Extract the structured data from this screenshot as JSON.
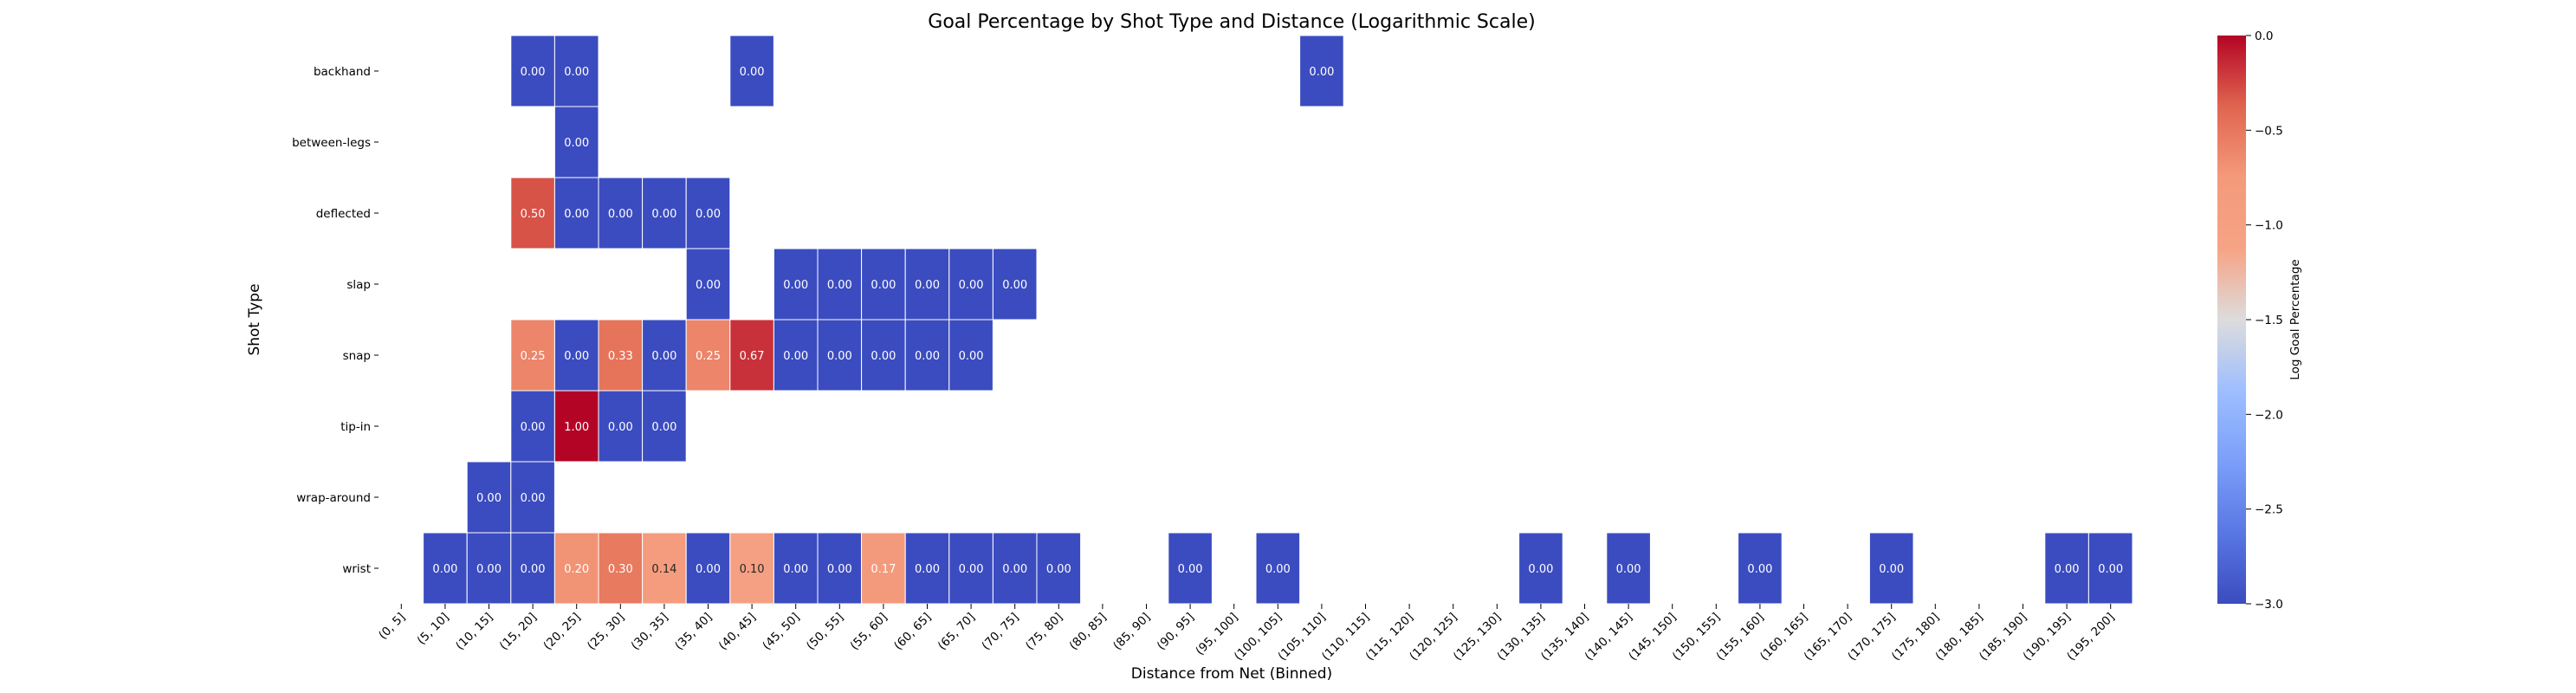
{
  "chart_data": {
    "type": "heatmap",
    "title": "Goal Percentage by Shot Type and Distance (Logarithmic Scale)",
    "xlabel": "Distance from Net (Binned)",
    "ylabel": "Shot Type",
    "x_categories": [
      "(0, 5]",
      "(5, 10]",
      "(10, 15]",
      "(15, 20]",
      "(20, 25]",
      "(25, 30]",
      "(30, 35]",
      "(35, 40]",
      "(40, 45]",
      "(45, 50]",
      "(50, 55]",
      "(55, 60]",
      "(60, 65]",
      "(65, 70]",
      "(70, 75]",
      "(75, 80]",
      "(80, 85]",
      "(85, 90]",
      "(90, 95]",
      "(95, 100]",
      "(100, 105]",
      "(105, 110]",
      "(110, 115]",
      "(115, 120]",
      "(120, 125]",
      "(125, 130]",
      "(130, 135]",
      "(135, 140]",
      "(140, 145]",
      "(145, 150]",
      "(150, 155]",
      "(155, 160]",
      "(160, 165]",
      "(165, 170]",
      "(170, 175]",
      "(175, 180]",
      "(180, 185]",
      "(185, 190]",
      "(190, 195]",
      "(195, 200]"
    ],
    "y_categories": [
      "backhand",
      "between-legs",
      "deflected",
      "slap",
      "snap",
      "tip-in",
      "wrap-around",
      "wrist"
    ],
    "cells": [
      {
        "row": 0,
        "col": 3,
        "value": 0.0,
        "label": "0.00"
      },
      {
        "row": 0,
        "col": 4,
        "value": 0.0,
        "label": "0.00"
      },
      {
        "row": 0,
        "col": 8,
        "value": 0.0,
        "label": "0.00"
      },
      {
        "row": 0,
        "col": 21,
        "value": 0.0,
        "label": "0.00"
      },
      {
        "row": 1,
        "col": 4,
        "value": 0.0,
        "label": "0.00"
      },
      {
        "row": 2,
        "col": 3,
        "value": 0.5,
        "label": "0.50"
      },
      {
        "row": 2,
        "col": 4,
        "value": 0.0,
        "label": "0.00"
      },
      {
        "row": 2,
        "col": 5,
        "value": 0.0,
        "label": "0.00"
      },
      {
        "row": 2,
        "col": 6,
        "value": 0.0,
        "label": "0.00"
      },
      {
        "row": 2,
        "col": 7,
        "value": 0.0,
        "label": "0.00"
      },
      {
        "row": 3,
        "col": 7,
        "value": 0.0,
        "label": "0.00"
      },
      {
        "row": 3,
        "col": 9,
        "value": 0.0,
        "label": "0.00"
      },
      {
        "row": 3,
        "col": 10,
        "value": 0.0,
        "label": "0.00"
      },
      {
        "row": 3,
        "col": 11,
        "value": 0.0,
        "label": "0.00"
      },
      {
        "row": 3,
        "col": 12,
        "value": 0.0,
        "label": "0.00"
      },
      {
        "row": 3,
        "col": 13,
        "value": 0.0,
        "label": "0.00"
      },
      {
        "row": 3,
        "col": 14,
        "value": 0.0,
        "label": "0.00"
      },
      {
        "row": 4,
        "col": 3,
        "value": 0.25,
        "label": "0.25"
      },
      {
        "row": 4,
        "col": 4,
        "value": 0.0,
        "label": "0.00"
      },
      {
        "row": 4,
        "col": 5,
        "value": 0.33,
        "label": "0.33"
      },
      {
        "row": 4,
        "col": 6,
        "value": 0.0,
        "label": "0.00"
      },
      {
        "row": 4,
        "col": 7,
        "value": 0.25,
        "label": "0.25"
      },
      {
        "row": 4,
        "col": 8,
        "value": 0.67,
        "label": "0.67"
      },
      {
        "row": 4,
        "col": 9,
        "value": 0.0,
        "label": "0.00"
      },
      {
        "row": 4,
        "col": 10,
        "value": 0.0,
        "label": "0.00"
      },
      {
        "row": 4,
        "col": 11,
        "value": 0.0,
        "label": "0.00"
      },
      {
        "row": 4,
        "col": 12,
        "value": 0.0,
        "label": "0.00"
      },
      {
        "row": 4,
        "col": 13,
        "value": 0.0,
        "label": "0.00"
      },
      {
        "row": 5,
        "col": 3,
        "value": 0.0,
        "label": "0.00"
      },
      {
        "row": 5,
        "col": 4,
        "value": 1.0,
        "label": "1.00"
      },
      {
        "row": 5,
        "col": 5,
        "value": 0.0,
        "label": "0.00"
      },
      {
        "row": 5,
        "col": 6,
        "value": 0.0,
        "label": "0.00"
      },
      {
        "row": 6,
        "col": 2,
        "value": 0.0,
        "label": "0.00"
      },
      {
        "row": 6,
        "col": 3,
        "value": 0.0,
        "label": "0.00"
      },
      {
        "row": 7,
        "col": 1,
        "value": 0.0,
        "label": "0.00"
      },
      {
        "row": 7,
        "col": 2,
        "value": 0.0,
        "label": "0.00"
      },
      {
        "row": 7,
        "col": 3,
        "value": 0.0,
        "label": "0.00"
      },
      {
        "row": 7,
        "col": 4,
        "value": 0.2,
        "label": "0.20"
      },
      {
        "row": 7,
        "col": 5,
        "value": 0.3,
        "label": "0.30"
      },
      {
        "row": 7,
        "col": 6,
        "value": 0.14,
        "label": "0.14"
      },
      {
        "row": 7,
        "col": 7,
        "value": 0.0,
        "label": "0.00"
      },
      {
        "row": 7,
        "col": 8,
        "value": 0.1,
        "label": "0.10"
      },
      {
        "row": 7,
        "col": 9,
        "value": 0.0,
        "label": "0.00"
      },
      {
        "row": 7,
        "col": 10,
        "value": 0.0,
        "label": "0.00"
      },
      {
        "row": 7,
        "col": 11,
        "value": 0.17,
        "label": "0.17"
      },
      {
        "row": 7,
        "col": 12,
        "value": 0.0,
        "label": "0.00"
      },
      {
        "row": 7,
        "col": 13,
        "value": 0.0,
        "label": "0.00"
      },
      {
        "row": 7,
        "col": 14,
        "value": 0.0,
        "label": "0.00"
      },
      {
        "row": 7,
        "col": 15,
        "value": 0.0,
        "label": "0.00"
      },
      {
        "row": 7,
        "col": 18,
        "value": 0.0,
        "label": "0.00"
      },
      {
        "row": 7,
        "col": 20,
        "value": 0.0,
        "label": "0.00"
      },
      {
        "row": 7,
        "col": 26,
        "value": 0.0,
        "label": "0.00"
      },
      {
        "row": 7,
        "col": 28,
        "value": 0.0,
        "label": "0.00"
      },
      {
        "row": 7,
        "col": 31,
        "value": 0.0,
        "label": "0.00"
      },
      {
        "row": 7,
        "col": 34,
        "value": 0.0,
        "label": "0.00"
      },
      {
        "row": 7,
        "col": 38,
        "value": 0.0,
        "label": "0.00"
      },
      {
        "row": 7,
        "col": 39,
        "value": 0.0,
        "label": "0.00"
      }
    ],
    "colorbar": {
      "label": "Log Goal Percentage",
      "range": [
        -3.0,
        0.0
      ],
      "ticks": [
        0.0,
        -0.5,
        -1.0,
        -1.5,
        -2.0,
        -2.5,
        -3.0
      ],
      "tick_labels": [
        "0.0",
        "−0.5",
        "−1.0",
        "−1.5",
        "−2.0",
        "−2.5",
        "−3.0"
      ],
      "colormap": "coolwarm"
    },
    "grid": false,
    "legend": "colorbar-right"
  }
}
